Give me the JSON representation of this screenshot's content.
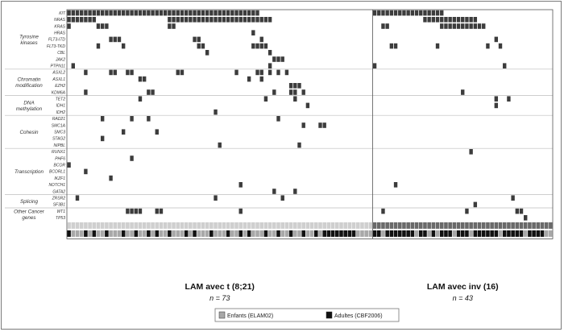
{
  "chart_data": {
    "type": "heatmap",
    "genes": [
      "KIT",
      "NRAS",
      "KRAS",
      "HRAS",
      "FLT3-ITD",
      "FLT3-TKD",
      "CBL",
      "JAK2",
      "PTPN11",
      "ASXL2",
      "ASXL1",
      "EZH2",
      "KDM6A",
      "TET2",
      "IDH1",
      "IDH2",
      "RAD21",
      "SMC1A",
      "SMC3",
      "STAG2",
      "NIPBL",
      "RUNX1",
      "PHF6",
      "BCOR",
      "BCORL1",
      "IKZF1",
      "NOTCH1",
      "GATA2",
      "ZRSR2",
      "SF3B1",
      "WT1",
      "TP53"
    ],
    "categories": [
      {
        "label_lines": [
          "Tyrosine",
          "kinases"
        ],
        "start": 0,
        "end": 8
      },
      {
        "label_lines": [
          "Chromatin",
          "modification"
        ],
        "start": 9,
        "end": 12
      },
      {
        "label_lines": [
          "DNA",
          "methylation"
        ],
        "start": 13,
        "end": 15
      },
      {
        "label_lines": [
          "Cohesin"
        ],
        "start": 16,
        "end": 20
      },
      {
        "label_lines": [
          "Transcription"
        ],
        "start": 21,
        "end": 27
      },
      {
        "label_lines": [
          "Splicing"
        ],
        "start": 28,
        "end": 29
      },
      {
        "label_lines": [
          "Other Cancer",
          "genes"
        ],
        "start": 30,
        "end": 31
      }
    ],
    "groups": [
      {
        "name": "LAM avec t (8;21)",
        "n_label": "n = 73",
        "n": 73
      },
      {
        "name": "LAM avec inv (16)",
        "n_label": "n = 43",
        "n": 43
      }
    ],
    "mutations": [
      {
        "gene": "KIT",
        "patients": [
          0,
          1,
          2,
          3,
          4,
          5,
          6,
          7,
          8,
          9,
          10,
          11,
          12,
          13,
          14,
          15,
          16,
          17,
          18,
          19,
          20,
          21,
          22,
          23,
          24,
          25,
          26,
          27,
          28,
          29,
          30,
          31,
          32,
          33,
          34,
          35,
          36,
          37,
          38,
          39,
          40,
          41,
          42,
          43,
          44,
          45,
          73,
          74,
          75,
          76,
          77,
          78,
          79,
          80,
          81,
          82,
          83,
          84,
          85,
          86,
          87,
          88,
          89
        ]
      },
      {
        "gene": "NRAS",
        "patients": [
          0,
          1,
          2,
          3,
          4,
          5,
          6,
          24,
          25,
          26,
          27,
          28,
          29,
          30,
          31,
          32,
          33,
          34,
          35,
          36,
          37,
          38,
          39,
          40,
          41,
          42,
          43,
          44,
          45,
          46,
          47,
          48,
          85,
          86,
          87,
          88,
          89,
          90,
          91,
          92,
          93,
          94,
          95,
          96,
          97
        ]
      },
      {
        "gene": "KRAS",
        "patients": [
          0,
          7,
          8,
          9,
          24,
          25,
          75,
          76,
          89,
          90,
          91,
          92,
          93,
          94,
          95,
          96,
          97,
          98,
          99
        ]
      },
      {
        "gene": "HRAS",
        "patients": [
          44
        ]
      },
      {
        "gene": "FLT3-ITD",
        "patients": [
          10,
          11,
          12,
          30,
          31,
          46,
          102
        ]
      },
      {
        "gene": "FLT3-TKD",
        "patients": [
          7,
          13,
          31,
          32,
          44,
          45,
          46,
          47,
          77,
          78,
          88,
          100,
          103
        ]
      },
      {
        "gene": "CBL",
        "patients": [
          33,
          48
        ]
      },
      {
        "gene": "JAK2",
        "patients": [
          49,
          50,
          51
        ]
      },
      {
        "gene": "PTPN11",
        "patients": [
          1,
          48,
          73,
          104
        ]
      },
      {
        "gene": "ASXL2",
        "patients": [
          4,
          10,
          11,
          14,
          15,
          26,
          27,
          40,
          45,
          46,
          48,
          50,
          52
        ]
      },
      {
        "gene": "ASXL1",
        "patients": [
          17,
          18,
          43,
          46
        ]
      },
      {
        "gene": "EZH2",
        "patients": [
          53,
          54,
          55
        ]
      },
      {
        "gene": "KDM6A",
        "patients": [
          4,
          19,
          20,
          49,
          53,
          54,
          56,
          94
        ]
      },
      {
        "gene": "TET2",
        "patients": [
          17,
          47,
          54,
          102,
          105
        ]
      },
      {
        "gene": "IDH1",
        "patients": [
          57,
          102
        ]
      },
      {
        "gene": "IDH2",
        "patients": [
          35
        ]
      },
      {
        "gene": "RAD21",
        "patients": [
          8,
          15,
          19,
          50
        ]
      },
      {
        "gene": "SMC1A",
        "patients": [
          56,
          60,
          61
        ]
      },
      {
        "gene": "SMC3",
        "patients": [
          13,
          21
        ]
      },
      {
        "gene": "STAG2",
        "patients": [
          8
        ]
      },
      {
        "gene": "NIPBL",
        "patients": [
          36,
          55
        ]
      },
      {
        "gene": "RUNX1",
        "patients": [
          96
        ]
      },
      {
        "gene": "PHF6",
        "patients": [
          15
        ]
      },
      {
        "gene": "BCOR",
        "patients": [
          0
        ]
      },
      {
        "gene": "BCORL1",
        "patients": [
          4
        ]
      },
      {
        "gene": "IKZF1",
        "patients": [
          10
        ]
      },
      {
        "gene": "NOTCH1",
        "patients": [
          41,
          78
        ]
      },
      {
        "gene": "GATA2",
        "patients": [
          49,
          54
        ]
      },
      {
        "gene": "ZRSR2",
        "patients": [
          2,
          35,
          51,
          106
        ]
      },
      {
        "gene": "SF3B1",
        "patients": [
          97
        ]
      },
      {
        "gene": "WT1",
        "patients": [
          14,
          15,
          16,
          17,
          21,
          22,
          41,
          75,
          95,
          107,
          108
        ]
      },
      {
        "gene": "TP53",
        "patients": [
          109
        ]
      }
    ],
    "age_row": {
      "t821_adult": [
        0,
        4,
        6,
        9,
        13,
        16,
        19,
        21,
        24,
        28,
        30,
        34,
        38,
        41,
        43,
        47,
        50,
        53,
        56,
        59,
        61,
        62,
        63,
        64,
        65,
        66,
        67,
        68
      ],
      "inv16_adult_exclude": [
        75,
        83,
        86,
        88,
        92,
        96,
        103,
        109,
        114,
        115
      ]
    },
    "legend": [
      {
        "label": "Enfants (ELAM02)",
        "color": "#a8a8a8"
      },
      {
        "label": "Adultes (CBF2006)",
        "color": "#111111"
      }
    ]
  },
  "colors": {
    "mutation": "#3c3c3c",
    "cell_empty": "#ffffff",
    "child": "#a8a8a8",
    "adult": "#111111",
    "grid": "#bdbdbd",
    "row_line": "#cfcfcf"
  }
}
